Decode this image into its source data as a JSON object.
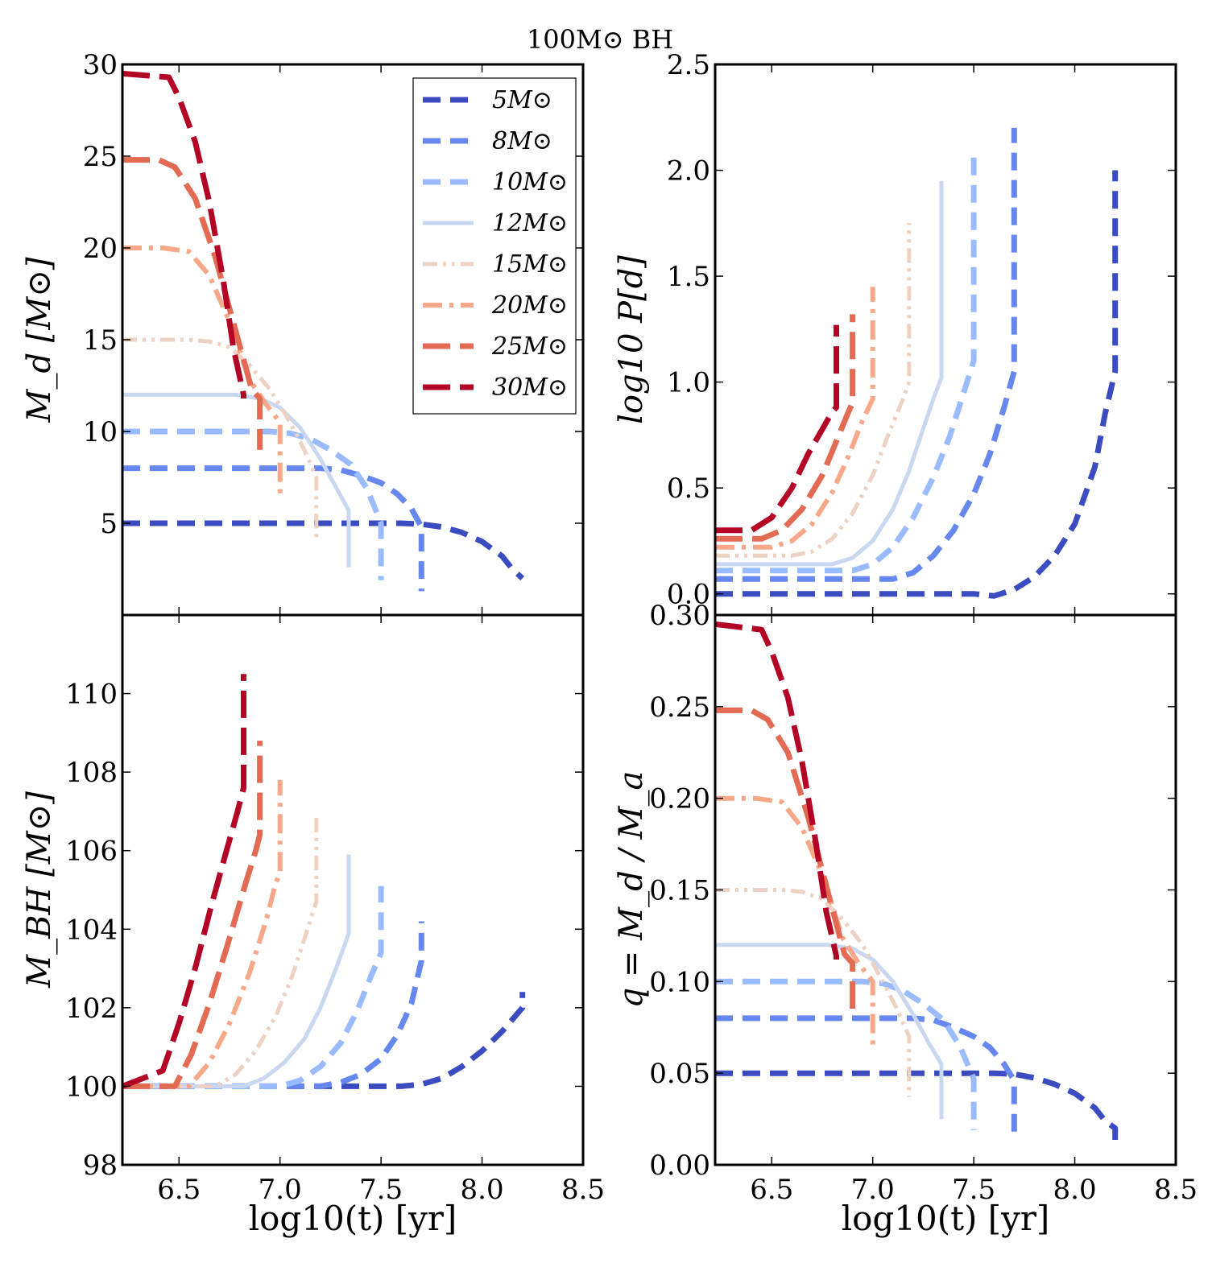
{
  "figure": {
    "title": "100M⊙ BH"
  },
  "legend": {
    "entries": [
      {
        "label": "5M⊙",
        "color": "#3b4cc0",
        "style": "dash"
      },
      {
        "label": "8M⊙",
        "color": "#6688ee",
        "style": "dash"
      },
      {
        "label": "10M⊙",
        "color": "#9abbff",
        "style": "dash"
      },
      {
        "label": "12M⊙",
        "color": "#c9d7f0",
        "style": "solid"
      },
      {
        "label": "15M⊙",
        "color": "#edd1c2",
        "style": "dashdotdot"
      },
      {
        "label": "20M⊙",
        "color": "#f7a889",
        "style": "dashdot"
      },
      {
        "label": "25M⊙",
        "color": "#e36a53",
        "style": "longdash"
      },
      {
        "label": "30M⊙",
        "color": "#b40426",
        "style": "longdash"
      }
    ]
  },
  "chart_data": [
    {
      "type": "line",
      "id": "donor_mass",
      "ylabel": "M_d [M⊙]",
      "xlim": [
        6.22,
        8.5
      ],
      "ylim": [
        0,
        30
      ],
      "xticks": [
        6.5,
        7.0,
        7.5,
        8.0,
        8.5
      ],
      "yticks": [
        5,
        10,
        15,
        20,
        25,
        30
      ],
      "xtick_labels_visible": false,
      "series": [
        {
          "name": "5M⊙",
          "x": [
            6.22,
            7.6,
            7.7,
            7.8,
            7.9,
            8.0,
            8.1,
            8.15,
            8.2
          ],
          "y": [
            5.0,
            5.0,
            4.95,
            4.8,
            4.5,
            4.0,
            3.2,
            2.5,
            2.0
          ]
        },
        {
          "name": "8M⊙",
          "x": [
            6.22,
            7.2,
            7.3,
            7.4,
            7.5,
            7.58,
            7.65,
            7.7,
            7.7
          ],
          "y": [
            8.0,
            8.0,
            7.9,
            7.6,
            7.2,
            6.6,
            5.8,
            4.8,
            1.3
          ]
        },
        {
          "name": "10M⊙",
          "x": [
            6.22,
            6.95,
            7.05,
            7.15,
            7.25,
            7.35,
            7.43,
            7.5,
            7.5
          ],
          "y": [
            10.0,
            10.0,
            9.9,
            9.6,
            9.0,
            8.2,
            6.9,
            5.0,
            1.9
          ]
        },
        {
          "name": "12M⊙",
          "x": [
            6.22,
            6.78,
            6.9,
            7.0,
            7.1,
            7.2,
            7.28,
            7.34,
            7.34
          ],
          "y": [
            12.0,
            12.0,
            11.8,
            11.3,
            10.2,
            8.5,
            6.9,
            5.7,
            2.6
          ]
        },
        {
          "name": "15M⊙",
          "x": [
            6.22,
            6.55,
            6.65,
            6.75,
            6.85,
            6.95,
            7.05,
            7.12,
            7.18,
            7.18
          ],
          "y": [
            15.0,
            15.0,
            14.9,
            14.6,
            13.6,
            12.3,
            10.5,
            9.0,
            7.5,
            4.0
          ]
        },
        {
          "name": "20M⊙",
          "x": [
            6.22,
            6.42,
            6.55,
            6.65,
            6.75,
            6.85,
            6.93,
            7.0,
            7.0
          ],
          "y": [
            20.0,
            20.0,
            19.8,
            18.5,
            16.0,
            12.8,
            11.5,
            10.5,
            6.5
          ]
        },
        {
          "name": "25M⊙",
          "x": [
            6.22,
            6.4,
            6.48,
            6.58,
            6.68,
            6.78,
            6.86,
            6.9,
            6.9
          ],
          "y": [
            24.8,
            24.8,
            24.4,
            22.7,
            19.5,
            15.5,
            12.3,
            11.8,
            9.0
          ]
        },
        {
          "name": "30M⊙",
          "x": [
            6.22,
            6.45,
            6.5,
            6.58,
            6.65,
            6.72,
            6.77,
            6.82,
            6.82
          ],
          "y": [
            29.5,
            29.3,
            28.2,
            25.8,
            22.5,
            18.2,
            14.5,
            12.0,
            11.8
          ]
        }
      ]
    },
    {
      "type": "line",
      "id": "period",
      "ylabel": "log10 P[d]",
      "xlim": [
        6.22,
        8.5
      ],
      "ylim": [
        -0.1,
        2.5
      ],
      "xticks": [
        6.5,
        7.0,
        7.5,
        8.0,
        8.5
      ],
      "yticks": [
        0.0,
        0.5,
        1.0,
        1.5,
        2.0,
        2.5
      ],
      "xtick_labels_visible": false,
      "series": [
        {
          "name": "5M⊙",
          "x": [
            6.22,
            7.5,
            7.6,
            7.7,
            7.8,
            7.9,
            8.0,
            8.1,
            8.15,
            8.2,
            8.2
          ],
          "y": [
            0.0,
            0.0,
            -0.01,
            0.02,
            0.08,
            0.18,
            0.33,
            0.6,
            0.85,
            1.05,
            2.0
          ]
        },
        {
          "name": "8M⊙",
          "x": [
            6.22,
            7.1,
            7.2,
            7.3,
            7.4,
            7.5,
            7.58,
            7.65,
            7.7,
            7.7
          ],
          "y": [
            0.07,
            0.07,
            0.1,
            0.18,
            0.3,
            0.47,
            0.66,
            0.88,
            1.05,
            2.2
          ]
        },
        {
          "name": "10M⊙",
          "x": [
            6.22,
            6.9,
            7.0,
            7.1,
            7.2,
            7.3,
            7.38,
            7.45,
            7.5,
            7.5
          ],
          "y": [
            0.11,
            0.11,
            0.14,
            0.22,
            0.36,
            0.55,
            0.74,
            0.95,
            1.1,
            2.1
          ]
        },
        {
          "name": "12M⊙",
          "x": [
            6.22,
            6.8,
            6.9,
            7.0,
            7.1,
            7.18,
            7.25,
            7.3,
            7.34,
            7.34
          ],
          "y": [
            0.14,
            0.14,
            0.17,
            0.25,
            0.4,
            0.58,
            0.78,
            0.92,
            1.02,
            1.95
          ]
        },
        {
          "name": "15M⊙",
          "x": [
            6.22,
            6.6,
            6.7,
            6.8,
            6.9,
            7.0,
            7.08,
            7.15,
            7.18,
            7.18
          ],
          "y": [
            0.18,
            0.18,
            0.2,
            0.26,
            0.38,
            0.56,
            0.76,
            0.92,
            1.0,
            1.75
          ]
        },
        {
          "name": "20M⊙",
          "x": [
            6.22,
            6.5,
            6.6,
            6.7,
            6.8,
            6.88,
            6.95,
            7.0,
            7.0
          ],
          "y": [
            0.22,
            0.22,
            0.25,
            0.33,
            0.48,
            0.65,
            0.82,
            0.92,
            1.45
          ]
        },
        {
          "name": "25M⊙",
          "x": [
            6.22,
            6.45,
            6.55,
            6.65,
            6.75,
            6.82,
            6.88,
            6.9,
            6.9
          ],
          "y": [
            0.26,
            0.26,
            0.3,
            0.4,
            0.56,
            0.72,
            0.86,
            0.9,
            1.32
          ]
        },
        {
          "name": "30M⊙",
          "x": [
            6.22,
            6.4,
            6.5,
            6.6,
            6.68,
            6.74,
            6.8,
            6.82,
            6.82
          ],
          "y": [
            0.3,
            0.3,
            0.36,
            0.5,
            0.66,
            0.76,
            0.86,
            0.88,
            1.27
          ]
        }
      ]
    },
    {
      "type": "line",
      "id": "bh_mass",
      "ylabel": "M_BH [M⊙]",
      "xlabel": "log10(t) [yr]",
      "xlim": [
        6.22,
        8.5
      ],
      "ylim": [
        98,
        112
      ],
      "xticks": [
        6.5,
        7.0,
        7.5,
        8.0,
        8.5
      ],
      "yticks": [
        98,
        100,
        102,
        104,
        106,
        108,
        110
      ],
      "series": [
        {
          "name": "5M⊙",
          "x": [
            6.22,
            7.6,
            7.7,
            7.8,
            7.9,
            8.0,
            8.1,
            8.15,
            8.2,
            8.2
          ],
          "y": [
            100.0,
            100.0,
            100.05,
            100.2,
            100.5,
            100.9,
            101.4,
            101.7,
            102.0,
            102.4
          ]
        },
        {
          "name": "8M⊙",
          "x": [
            6.22,
            7.2,
            7.3,
            7.4,
            7.5,
            7.58,
            7.65,
            7.7,
            7.7
          ],
          "y": [
            100.0,
            100.0,
            100.1,
            100.3,
            100.7,
            101.3,
            102.1,
            103.2,
            104.2
          ]
        },
        {
          "name": "10M⊙",
          "x": [
            6.22,
            7.0,
            7.1,
            7.2,
            7.3,
            7.38,
            7.45,
            7.5,
            7.5
          ],
          "y": [
            100.0,
            100.0,
            100.15,
            100.5,
            101.1,
            101.9,
            102.8,
            103.4,
            105.1
          ]
        },
        {
          "name": "12M⊙",
          "x": [
            6.22,
            6.82,
            6.92,
            7.02,
            7.12,
            7.2,
            7.27,
            7.32,
            7.34,
            7.34
          ],
          "y": [
            100.0,
            100.0,
            100.2,
            100.6,
            101.2,
            102.0,
            102.9,
            103.6,
            103.9,
            105.9
          ]
        },
        {
          "name": "15M⊙",
          "x": [
            6.22,
            6.68,
            6.78,
            6.88,
            6.98,
            7.06,
            7.13,
            7.18,
            7.18
          ],
          "y": [
            100.0,
            100.0,
            100.3,
            100.9,
            101.8,
            102.8,
            103.9,
            104.7,
            106.9
          ]
        },
        {
          "name": "20M⊙",
          "x": [
            6.22,
            6.55,
            6.65,
            6.75,
            6.85,
            6.93,
            6.98,
            7.0,
            7.0
          ],
          "y": [
            100.0,
            100.0,
            100.6,
            101.6,
            102.9,
            104.2,
            105.2,
            105.4,
            107.8
          ]
        },
        {
          "name": "25M⊙",
          "x": [
            6.22,
            6.48,
            6.56,
            6.65,
            6.74,
            6.82,
            6.88,
            6.9,
            6.9
          ],
          "y": [
            100.0,
            100.0,
            100.8,
            102.1,
            103.6,
            105.0,
            106.0,
            106.4,
            108.8
          ]
        },
        {
          "name": "30M⊙",
          "x": [
            6.22,
            6.42,
            6.5,
            6.58,
            6.66,
            6.73,
            6.79,
            6.82,
            6.82
          ],
          "y": [
            100.0,
            100.4,
            101.6,
            103.0,
            104.6,
            105.9,
            107.0,
            107.6,
            110.5
          ]
        }
      ]
    },
    {
      "type": "line",
      "id": "mass_ratio",
      "ylabel": "q = M_d / M_a",
      "xlabel": "log10(t) [yr]",
      "xlim": [
        6.22,
        8.5
      ],
      "ylim": [
        0.0,
        0.3
      ],
      "xticks": [
        6.5,
        7.0,
        7.5,
        8.0,
        8.5
      ],
      "yticks": [
        0.0,
        0.05,
        0.1,
        0.15,
        0.2,
        0.25,
        0.3
      ],
      "series": [
        {
          "name": "5M⊙",
          "x": [
            6.22,
            7.6,
            7.7,
            7.8,
            7.9,
            8.0,
            8.1,
            8.15,
            8.2,
            8.2
          ],
          "y": [
            0.05,
            0.05,
            0.0495,
            0.0475,
            0.044,
            0.039,
            0.031,
            0.024,
            0.02,
            0.009
          ]
        },
        {
          "name": "8M⊙",
          "x": [
            6.22,
            7.2,
            7.3,
            7.4,
            7.5,
            7.58,
            7.65,
            7.7,
            7.7
          ],
          "y": [
            0.08,
            0.08,
            0.079,
            0.075,
            0.07,
            0.064,
            0.055,
            0.046,
            0.014
          ]
        },
        {
          "name": "10M⊙",
          "x": [
            6.22,
            6.95,
            7.05,
            7.15,
            7.25,
            7.35,
            7.43,
            7.5,
            7.5
          ],
          "y": [
            0.1,
            0.1,
            0.099,
            0.095,
            0.088,
            0.079,
            0.065,
            0.047,
            0.019
          ]
        },
        {
          "name": "12M⊙",
          "x": [
            6.22,
            6.78,
            6.9,
            7.0,
            7.1,
            7.2,
            7.28,
            7.34,
            7.34
          ],
          "y": [
            0.12,
            0.12,
            0.118,
            0.112,
            0.1,
            0.082,
            0.066,
            0.055,
            0.025
          ]
        },
        {
          "name": "15M⊙",
          "x": [
            6.22,
            6.55,
            6.65,
            6.75,
            6.85,
            6.95,
            7.05,
            7.12,
            7.18,
            7.18
          ],
          "y": [
            0.15,
            0.15,
            0.149,
            0.145,
            0.134,
            0.12,
            0.1,
            0.085,
            0.07,
            0.037
          ]
        },
        {
          "name": "20M⊙",
          "x": [
            6.22,
            6.42,
            6.55,
            6.65,
            6.75,
            6.85,
            6.93,
            7.0,
            7.0
          ],
          "y": [
            0.2,
            0.2,
            0.198,
            0.184,
            0.158,
            0.124,
            0.11,
            0.1,
            0.062
          ]
        },
        {
          "name": "25M⊙",
          "x": [
            6.22,
            6.4,
            6.48,
            6.58,
            6.68,
            6.78,
            6.86,
            6.9,
            6.9
          ],
          "y": [
            0.248,
            0.248,
            0.243,
            0.225,
            0.19,
            0.148,
            0.115,
            0.11,
            0.083
          ]
        },
        {
          "name": "30M⊙",
          "x": [
            6.22,
            6.45,
            6.5,
            6.58,
            6.65,
            6.72,
            6.77,
            6.82,
            6.82
          ],
          "y": [
            0.295,
            0.292,
            0.28,
            0.255,
            0.22,
            0.175,
            0.138,
            0.114,
            0.112
          ]
        }
      ]
    }
  ]
}
